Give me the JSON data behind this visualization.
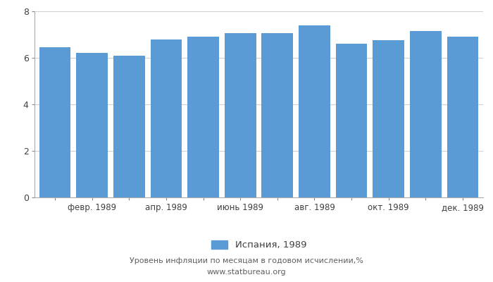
{
  "tick_labels": [
    "",
    "февр. 1989",
    "",
    "апр. 1989",
    "",
    "июнь 1989",
    "",
    "авг. 1989",
    "",
    "окт. 1989",
    "",
    "дек. 1989"
  ],
  "values": [
    6.45,
    6.2,
    6.1,
    6.8,
    6.9,
    7.05,
    7.05,
    7.4,
    6.6,
    6.75,
    7.15,
    6.9
  ],
  "bar_color": "#5b9bd5",
  "background_color": "#ffffff",
  "legend_label": "Испания, 1989",
  "footer_line1": "Уровень инфляции по месяцам в годовом исчислении,%",
  "footer_line2": "www.statbureau.org",
  "ylim": [
    0,
    8
  ],
  "yticks": [
    0,
    2,
    4,
    6,
    8
  ],
  "grid_color": "#d0d0d0",
  "text_color": "#404040",
  "footer_color": "#606060"
}
